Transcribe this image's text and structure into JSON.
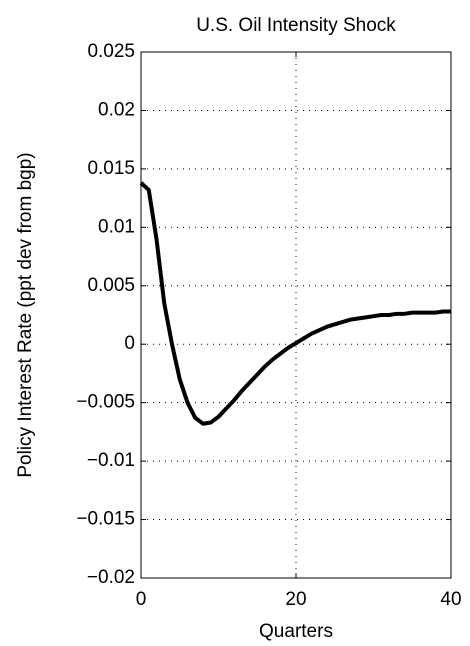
{
  "chart_data": {
    "type": "line",
    "title": "U.S. Oil Intensity Shock",
    "x_label": "Quarters",
    "y_label": "Policy Interest Rate (ppt dev from bgp)",
    "x": [
      0,
      1,
      2,
      3,
      4,
      5,
      6,
      7,
      8,
      9,
      10,
      11,
      12,
      13,
      14,
      15,
      16,
      17,
      18,
      19,
      20,
      21,
      22,
      23,
      24,
      25,
      26,
      27,
      28,
      29,
      30,
      31,
      32,
      33,
      34,
      35,
      36,
      37,
      38,
      39,
      40
    ],
    "series": [
      {
        "name": "Policy Interest Rate",
        "color": "#000000",
        "values": [
          0.0138,
          0.0132,
          0.009,
          0.0035,
          0.0,
          -0.003,
          -0.005,
          -0.0063,
          -0.0068,
          -0.0067,
          -0.0062,
          -0.0055,
          -0.0048,
          -0.004,
          -0.0033,
          -0.0026,
          -0.0019,
          -0.0013,
          -0.0008,
          -0.0003,
          0.0001,
          0.0005,
          0.0009,
          0.0012,
          0.0015,
          0.0017,
          0.0019,
          0.0021,
          0.0022,
          0.0023,
          0.0024,
          0.0025,
          0.0025,
          0.0026,
          0.0026,
          0.0027,
          0.0027,
          0.0027,
          0.0027,
          0.0028,
          0.0028
        ]
      }
    ],
    "xlim": [
      0,
      40
    ],
    "xticks": [
      0,
      20,
      40
    ],
    "ylim": [
      -0.02,
      0.025
    ],
    "yticks": [
      {
        "value": -0.02,
        "label": "−0.02"
      },
      {
        "value": -0.015,
        "label": "−0.015"
      },
      {
        "value": -0.01,
        "label": "−0.01"
      },
      {
        "value": -0.005,
        "label": "−0.005"
      },
      0,
      0.005,
      0.01,
      0.015,
      0.02,
      0.025
    ],
    "grid": true
  }
}
